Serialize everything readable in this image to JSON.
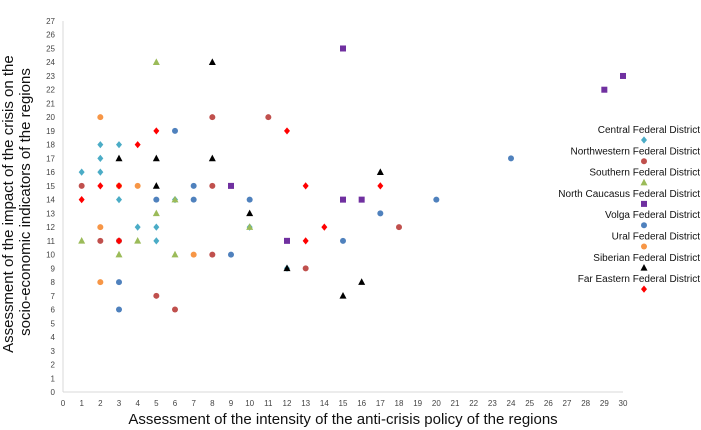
{
  "chart_data": {
    "type": "scatter",
    "xlabel": "Assessment of the intensity of the anti-crisis policy of the regions",
    "ylabel_lines": [
      "Assessment of the impact of the crisis on the",
      "socio-economic indicators of the regions"
    ],
    "xlim": [
      0,
      30
    ],
    "ylim": [
      0,
      27
    ],
    "x_ticks": [
      "0",
      "1",
      "2",
      "3",
      "4",
      "5",
      "6",
      "7",
      "8",
      "9",
      "10",
      "11",
      "12",
      "13",
      "14",
      "15",
      "16",
      "17",
      "18",
      "19",
      "20",
      "21",
      "22",
      "23",
      "24",
      "25",
      "26",
      "27",
      "28",
      "29",
      "30"
    ],
    "y_ticks": [
      "0",
      "1",
      "2",
      "3",
      "4",
      "5",
      "6",
      "7",
      "8",
      "9",
      "10",
      "11",
      "12",
      "13",
      "14",
      "15",
      "16",
      "17",
      "18",
      "19",
      "20",
      "21",
      "22",
      "23",
      "24",
      "25",
      "26",
      "27"
    ],
    "grid": false,
    "legend_position": "right",
    "series": [
      {
        "name": "Central Federal District",
        "color": "#4bacc6",
        "marker": "diamond",
        "points": [
          [
            1,
            16
          ],
          [
            2,
            18
          ],
          [
            2,
            17
          ],
          [
            2,
            16
          ],
          [
            3,
            18
          ],
          [
            3,
            14
          ],
          [
            4,
            12
          ],
          [
            5,
            12
          ],
          [
            5,
            11
          ],
          [
            6,
            14
          ],
          [
            10,
            12
          ],
          [
            12,
            9
          ]
        ]
      },
      {
        "name": "Northwestern Federal District",
        "color": "#c0504d",
        "marker": "circle",
        "points": [
          [
            1,
            15
          ],
          [
            2,
            11
          ],
          [
            3,
            11
          ],
          [
            5,
            7
          ],
          [
            6,
            6
          ],
          [
            8,
            20
          ],
          [
            8,
            15
          ],
          [
            8,
            10
          ],
          [
            11,
            20
          ],
          [
            13,
            9
          ],
          [
            18,
            12
          ]
        ]
      },
      {
        "name": "Southern Federal District",
        "color": "#9bbb59",
        "marker": "triangle",
        "points": [
          [
            1,
            11
          ],
          [
            3,
            10
          ],
          [
            4,
            11
          ],
          [
            5,
            24
          ],
          [
            5,
            13
          ],
          [
            6,
            14
          ],
          [
            6,
            10
          ],
          [
            10,
            12
          ]
        ]
      },
      {
        "name": "North Caucasus Federal District",
        "color": "#7030a0",
        "marker": "square",
        "points": [
          [
            9,
            15
          ],
          [
            12,
            11
          ],
          [
            15,
            25
          ],
          [
            15,
            14
          ],
          [
            16,
            14
          ],
          [
            29,
            22
          ],
          [
            30,
            23
          ]
        ]
      },
      {
        "name": "Volga Federal District",
        "color": "#4f81bd",
        "marker": "circle",
        "points": [
          [
            3,
            8
          ],
          [
            3,
            6
          ],
          [
            5,
            14
          ],
          [
            6,
            19
          ],
          [
            7,
            15
          ],
          [
            7,
            14
          ],
          [
            9,
            10
          ],
          [
            10,
            14
          ],
          [
            15,
            11
          ],
          [
            17,
            13
          ],
          [
            20,
            14
          ],
          [
            24,
            17
          ]
        ]
      },
      {
        "name": "Ural Federal District",
        "color": "#f79646",
        "marker": "circle",
        "points": [
          [
            2,
            20
          ],
          [
            2,
            12
          ],
          [
            2,
            8
          ],
          [
            3,
            15
          ],
          [
            4,
            15
          ],
          [
            7,
            10
          ]
        ]
      },
      {
        "name": "Siberian Federal District",
        "color": "#000000",
        "marker": "triangle",
        "points": [
          [
            3,
            17
          ],
          [
            5,
            17
          ],
          [
            5,
            15
          ],
          [
            8,
            24
          ],
          [
            8,
            17
          ],
          [
            10,
            13
          ],
          [
            12,
            9
          ],
          [
            15,
            7
          ],
          [
            16,
            8
          ],
          [
            17,
            16
          ]
        ]
      },
      {
        "name": "Far Eastern Federal District",
        "color": "#ff0000",
        "marker": "diamond",
        "points": [
          [
            1,
            14
          ],
          [
            2,
            15
          ],
          [
            3,
            15
          ],
          [
            3,
            11
          ],
          [
            4,
            18
          ],
          [
            5,
            19
          ],
          [
            12,
            19
          ],
          [
            13,
            15
          ],
          [
            13,
            11
          ],
          [
            14,
            12
          ],
          [
            17,
            15
          ]
        ]
      }
    ]
  }
}
